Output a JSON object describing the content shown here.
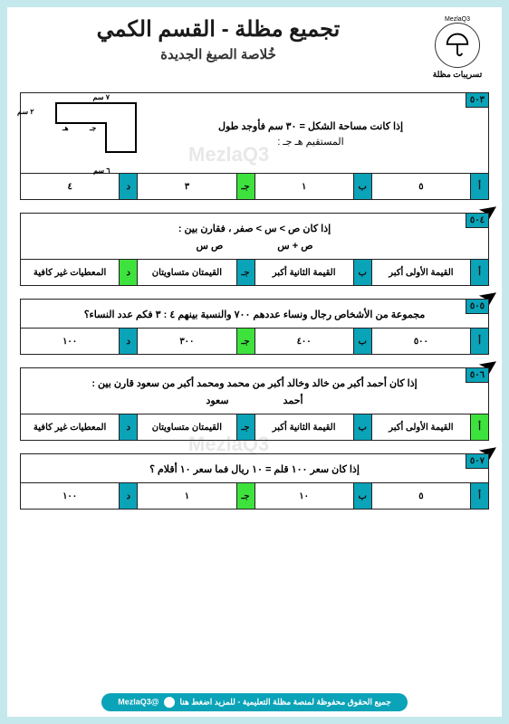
{
  "header": {
    "main_title": "تجميع مظلة - القسم الكمي",
    "sub_title": "خُلاصة الصيغ الجديدة",
    "logo_label": "تسريبات مظلة",
    "logo_top": "MezlaQ3"
  },
  "questions": [
    {
      "num": "٥٠٣",
      "has_arrow": false,
      "text_main": "إذا كانت مساحة الشكل = ٣٠ سم فأوجد طول",
      "text_sub": "المستقيم هـ جـ :",
      "diagram_labels": {
        "top": "٧ سم",
        "left": "٢ سم",
        "mid": "هـ",
        "midr": "جـ",
        "bottom": "٦ سم"
      },
      "answers": [
        {
          "letter": "أ",
          "text": "٥",
          "correct": false
        },
        {
          "letter": "ب",
          "text": "١",
          "correct": false
        },
        {
          "letter": "جـ",
          "text": "٣",
          "correct": true
        },
        {
          "letter": "د",
          "text": "٤",
          "correct": false
        }
      ]
    },
    {
      "num": "٥٠٤",
      "has_arrow": true,
      "text_main": "إذا كان ص > س > صفر ، فقارن بين :",
      "col1": "ص + س",
      "col2": "ص س",
      "answers": [
        {
          "letter": "أ",
          "text": "القيمة الأولى أكبر",
          "correct": false
        },
        {
          "letter": "ب",
          "text": "القيمة الثانية أكبر",
          "correct": false
        },
        {
          "letter": "جـ",
          "text": "القيمتان متساويتان",
          "correct": false
        },
        {
          "letter": "د",
          "text": "المعطيات غير كافية",
          "correct": true
        }
      ]
    },
    {
      "num": "٥٠٥",
      "has_arrow": true,
      "text_main": "مجموعة من الأشخاص رجال ونساء عددهم ٧٠٠ والنسبة بينهم ٤ : ٣ فكم عدد النساء؟",
      "answers": [
        {
          "letter": "أ",
          "text": "٥٠٠",
          "correct": false
        },
        {
          "letter": "ب",
          "text": "٤٠٠",
          "correct": false
        },
        {
          "letter": "جـ",
          "text": "٣٠٠",
          "correct": true
        },
        {
          "letter": "د",
          "text": "١٠٠",
          "correct": false
        }
      ]
    },
    {
      "num": "٥٠٦",
      "has_arrow": true,
      "text_main": "إذا كان أحمد أكبر من خالد وخالد أكبر من محمد ومحمد أكبر من سعود قارن بين :",
      "col1": "أحمد",
      "col2": "سعود",
      "answers": [
        {
          "letter": "أ",
          "text": "القيمة الأولى أكبر",
          "correct": true
        },
        {
          "letter": "ب",
          "text": "القيمة الثانية أكبر",
          "correct": false
        },
        {
          "letter": "جـ",
          "text": "القيمتان متساويتان",
          "correct": false
        },
        {
          "letter": "د",
          "text": "المعطيات غير كافية",
          "correct": false
        }
      ]
    },
    {
      "num": "٥٠٧",
      "has_arrow": true,
      "text_main": "إذا كان سعر ١٠٠ قلم = ١٠ ريال فما سعر ١٠ أقلام ؟",
      "answers": [
        {
          "letter": "أ",
          "text": "٥",
          "correct": false
        },
        {
          "letter": "ب",
          "text": "١٠",
          "correct": false
        },
        {
          "letter": "جـ",
          "text": "١",
          "correct": true
        },
        {
          "letter": "د",
          "text": "١٠٠",
          "correct": false
        }
      ]
    }
  ],
  "footer": {
    "text": "جميع الحقوق محفوظة لمنصة مظلة التعليمية - للمزيد اضغط هنا",
    "handle": "@MezlaQ3"
  },
  "colors": {
    "accent": "#0aa3b8",
    "correct": "#3de23d",
    "page_bg": "#c5e8ec"
  }
}
